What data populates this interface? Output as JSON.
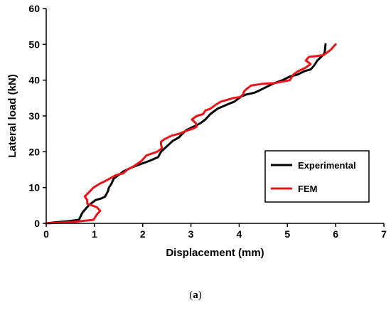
{
  "caption": {
    "prefix": "(",
    "letter": "a",
    "suffix": ")"
  },
  "chart_data": {
    "type": "line",
    "xlabel": "Displacement (mm)",
    "ylabel": "Lateral load (kN)",
    "xlim": [
      0,
      7
    ],
    "ylim": [
      0,
      60
    ],
    "xticks": [
      0,
      1,
      2,
      3,
      4,
      5,
      6,
      7
    ],
    "yticks": [
      0,
      10,
      20,
      30,
      40,
      50,
      60
    ],
    "grid": false,
    "legend": "right, boxed",
    "series": [
      {
        "name": "Experimental",
        "color": "#000000",
        "points": [
          [
            0,
            0
          ],
          [
            0.2,
            0.3
          ],
          [
            0.45,
            0.6
          ],
          [
            0.68,
            1
          ],
          [
            0.75,
            3
          ],
          [
            0.88,
            5
          ],
          [
            1.02,
            6.5
          ],
          [
            1.15,
            7
          ],
          [
            1.22,
            7.5
          ],
          [
            1.28,
            9
          ],
          [
            1.3,
            10
          ],
          [
            1.35,
            11
          ],
          [
            1.4,
            12.5
          ],
          [
            1.5,
            13.5
          ],
          [
            1.6,
            14.5
          ],
          [
            1.75,
            15.5
          ],
          [
            1.95,
            16.5
          ],
          [
            2.15,
            17.5
          ],
          [
            2.32,
            18.5
          ],
          [
            2.38,
            20
          ],
          [
            2.5,
            21.5
          ],
          [
            2.62,
            23
          ],
          [
            2.75,
            24
          ],
          [
            2.82,
            25
          ],
          [
            2.9,
            26
          ],
          [
            3.02,
            26.8
          ],
          [
            3.1,
            27.3
          ],
          [
            3.2,
            28
          ],
          [
            3.3,
            29
          ],
          [
            3.4,
            30.5
          ],
          [
            3.55,
            32
          ],
          [
            3.72,
            33
          ],
          [
            3.9,
            34
          ],
          [
            4.05,
            35.5
          ],
          [
            4.15,
            36
          ],
          [
            4.32,
            36.5
          ],
          [
            4.4,
            37
          ],
          [
            4.55,
            38
          ],
          [
            4.7,
            39
          ],
          [
            4.9,
            40
          ],
          [
            5.05,
            41
          ],
          [
            5.2,
            41.5
          ],
          [
            5.35,
            42.5
          ],
          [
            5.48,
            43
          ],
          [
            5.55,
            44
          ],
          [
            5.62,
            45.5
          ],
          [
            5.7,
            46.5
          ],
          [
            5.77,
            47.5
          ],
          [
            5.78,
            48.5
          ],
          [
            5.79,
            50
          ]
        ]
      },
      {
        "name": "FEM",
        "color": "#e8141a",
        "points": [
          [
            0,
            0
          ],
          [
            0.45,
            0.3
          ],
          [
            0.7,
            0.6
          ],
          [
            0.98,
            1
          ],
          [
            1.05,
            2.5
          ],
          [
            1.12,
            3.5
          ],
          [
            1.05,
            4.5
          ],
          [
            0.85,
            5.5
          ],
          [
            0.85,
            6.5
          ],
          [
            0.8,
            7.5
          ],
          [
            0.98,
            10
          ],
          [
            1.1,
            11
          ],
          [
            1.25,
            12
          ],
          [
            1.45,
            13.5
          ],
          [
            1.6,
            14
          ],
          [
            1.68,
            15
          ],
          [
            1.82,
            16
          ],
          [
            1.98,
            17.5
          ],
          [
            2.08,
            19
          ],
          [
            2.3,
            20
          ],
          [
            2.4,
            21
          ],
          [
            2.38,
            22
          ],
          [
            2.38,
            22.8
          ],
          [
            2.45,
            23.5
          ],
          [
            2.6,
            24.5
          ],
          [
            2.75,
            25
          ],
          [
            2.9,
            25.8
          ],
          [
            3.05,
            26.5
          ],
          [
            3.12,
            27
          ],
          [
            3.1,
            28
          ],
          [
            3.02,
            29
          ],
          [
            3.12,
            30
          ],
          [
            3.25,
            30.5
          ],
          [
            3.3,
            31.5
          ],
          [
            3.4,
            32
          ],
          [
            3.5,
            33
          ],
          [
            3.62,
            34
          ],
          [
            3.88,
            35
          ],
          [
            4.02,
            35.3
          ],
          [
            4.08,
            36
          ],
          [
            4.1,
            36.8
          ],
          [
            4.15,
            37.5
          ],
          [
            4.25,
            38.5
          ],
          [
            4.5,
            39
          ],
          [
            4.75,
            39.2
          ],
          [
            5.05,
            40
          ],
          [
            5.12,
            41.5
          ],
          [
            5.22,
            42.5
          ],
          [
            5.38,
            43.5
          ],
          [
            5.48,
            44.5
          ],
          [
            5.38,
            45.5
          ],
          [
            5.45,
            46.5
          ],
          [
            5.6,
            46.7
          ],
          [
            5.75,
            47
          ],
          [
            5.9,
            48.5
          ],
          [
            6,
            50
          ]
        ]
      }
    ]
  }
}
